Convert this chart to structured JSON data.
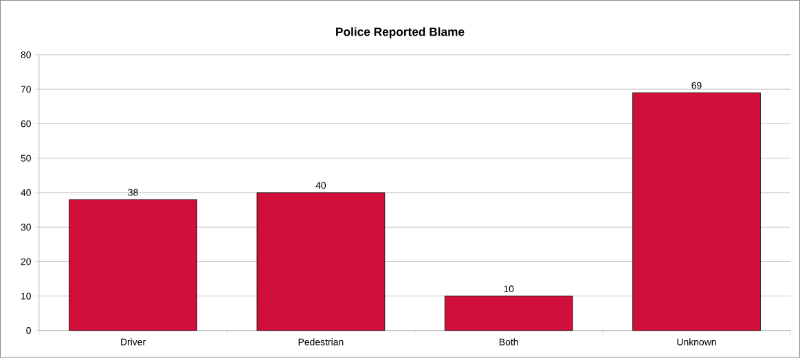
{
  "chart_data": {
    "type": "bar",
    "title": "Police Reported Blame",
    "categories": [
      "Driver",
      "Pedestrian",
      "Both",
      "Unknown"
    ],
    "values": [
      38,
      40,
      10,
      69
    ],
    "color": "#d0103a",
    "ylim": [
      0,
      80
    ],
    "yticks": [
      0,
      10,
      20,
      30,
      40,
      50,
      60,
      70,
      80
    ],
    "grid": "y",
    "data_labels": true
  }
}
